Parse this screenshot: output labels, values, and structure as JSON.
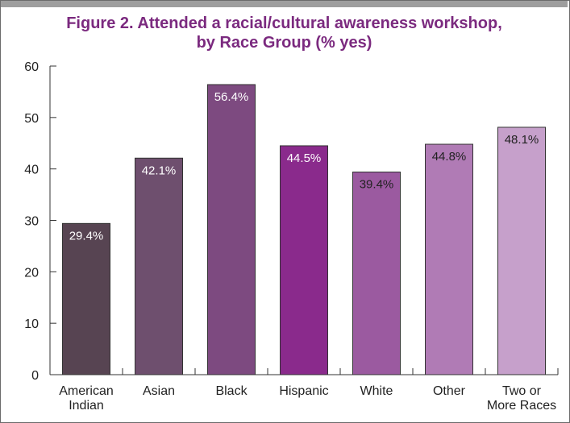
{
  "chart_data": {
    "type": "bar",
    "title_lines": [
      "Figure 2. Attended a racial/cultural awareness workshop,",
      "by Race Group (% yes)"
    ],
    "xlabel": "",
    "ylabel": "",
    "ylim": [
      0,
      60
    ],
    "yticks": [
      0,
      10,
      20,
      30,
      40,
      50,
      60
    ],
    "grid": false,
    "categories": [
      [
        "American",
        "Indian"
      ],
      [
        "Asian"
      ],
      [
        "Black"
      ],
      [
        "Hispanic"
      ],
      [
        "White"
      ],
      [
        "Other"
      ],
      [
        "Two or",
        "More Races"
      ]
    ],
    "values": [
      29.4,
      42.1,
      56.4,
      44.5,
      39.4,
      44.8,
      48.1
    ],
    "data_labels": [
      "29.4%",
      "42.1%",
      "56.4%",
      "44.5%",
      "39.4%",
      "44.8%",
      "48.1%"
    ],
    "bar_colors": [
      "#574452",
      "#6e4f6e",
      "#7d4a80",
      "#8a2a8c",
      "#9b5aa0",
      "#b07bb5",
      "#c6a0cb"
    ],
    "label_colors": [
      "#ffffff",
      "#ffffff",
      "#ffffff",
      "#ffffff",
      "#222222",
      "#222222",
      "#222222"
    ]
  }
}
